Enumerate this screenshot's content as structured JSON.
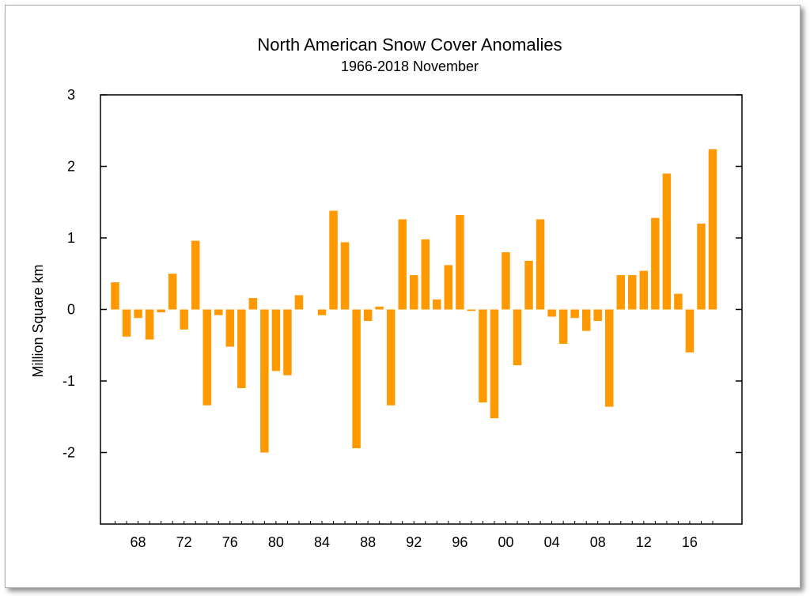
{
  "chart_data": {
    "type": "bar",
    "title": "North American Snow Cover Anomalies",
    "subtitle": "1966-2018 November",
    "xlabel": "",
    "ylabel": "Million Square km",
    "ylim": [
      -3,
      3
    ],
    "y_ticks": [
      3,
      2,
      1,
      0,
      -1,
      -2
    ],
    "x_tick_labels": [
      "68",
      "72",
      "76",
      "80",
      "84",
      "88",
      "92",
      "96",
      "00",
      "04",
      "08",
      "12",
      "16"
    ],
    "x_tick_years": [
      1968,
      1972,
      1976,
      1980,
      1984,
      1988,
      1992,
      1996,
      2000,
      2004,
      2008,
      2012,
      2016
    ],
    "bar_color": "#ff9900",
    "years": [
      1966,
      1967,
      1968,
      1969,
      1970,
      1971,
      1972,
      1973,
      1974,
      1975,
      1976,
      1977,
      1978,
      1979,
      1980,
      1981,
      1982,
      1983,
      1984,
      1985,
      1986,
      1987,
      1988,
      1989,
      1990,
      1991,
      1992,
      1993,
      1994,
      1995,
      1996,
      1997,
      1998,
      1999,
      2000,
      2001,
      2002,
      2003,
      2004,
      2005,
      2006,
      2007,
      2008,
      2009,
      2010,
      2011,
      2012,
      2013,
      2014,
      2015,
      2016,
      2017,
      2018
    ],
    "values": [
      0.38,
      -0.38,
      -0.12,
      -0.42,
      -0.04,
      0.5,
      -0.28,
      0.96,
      -1.34,
      -0.08,
      -0.52,
      -1.1,
      0.16,
      -2.0,
      -0.86,
      -0.92,
      0.2,
      null,
      -0.08,
      1.38,
      0.94,
      -1.94,
      -0.16,
      0.04,
      -1.34,
      1.26,
      0.48,
      0.98,
      0.14,
      0.62,
      1.32,
      -0.02,
      -1.3,
      -1.52,
      0.8,
      -0.78,
      0.68,
      1.26,
      -0.1,
      -0.48,
      -0.12,
      -0.3,
      -0.16,
      -1.36,
      0.48,
      0.48,
      0.54,
      1.28,
      1.9,
      0.22,
      -0.6,
      1.2,
      2.24
    ]
  }
}
